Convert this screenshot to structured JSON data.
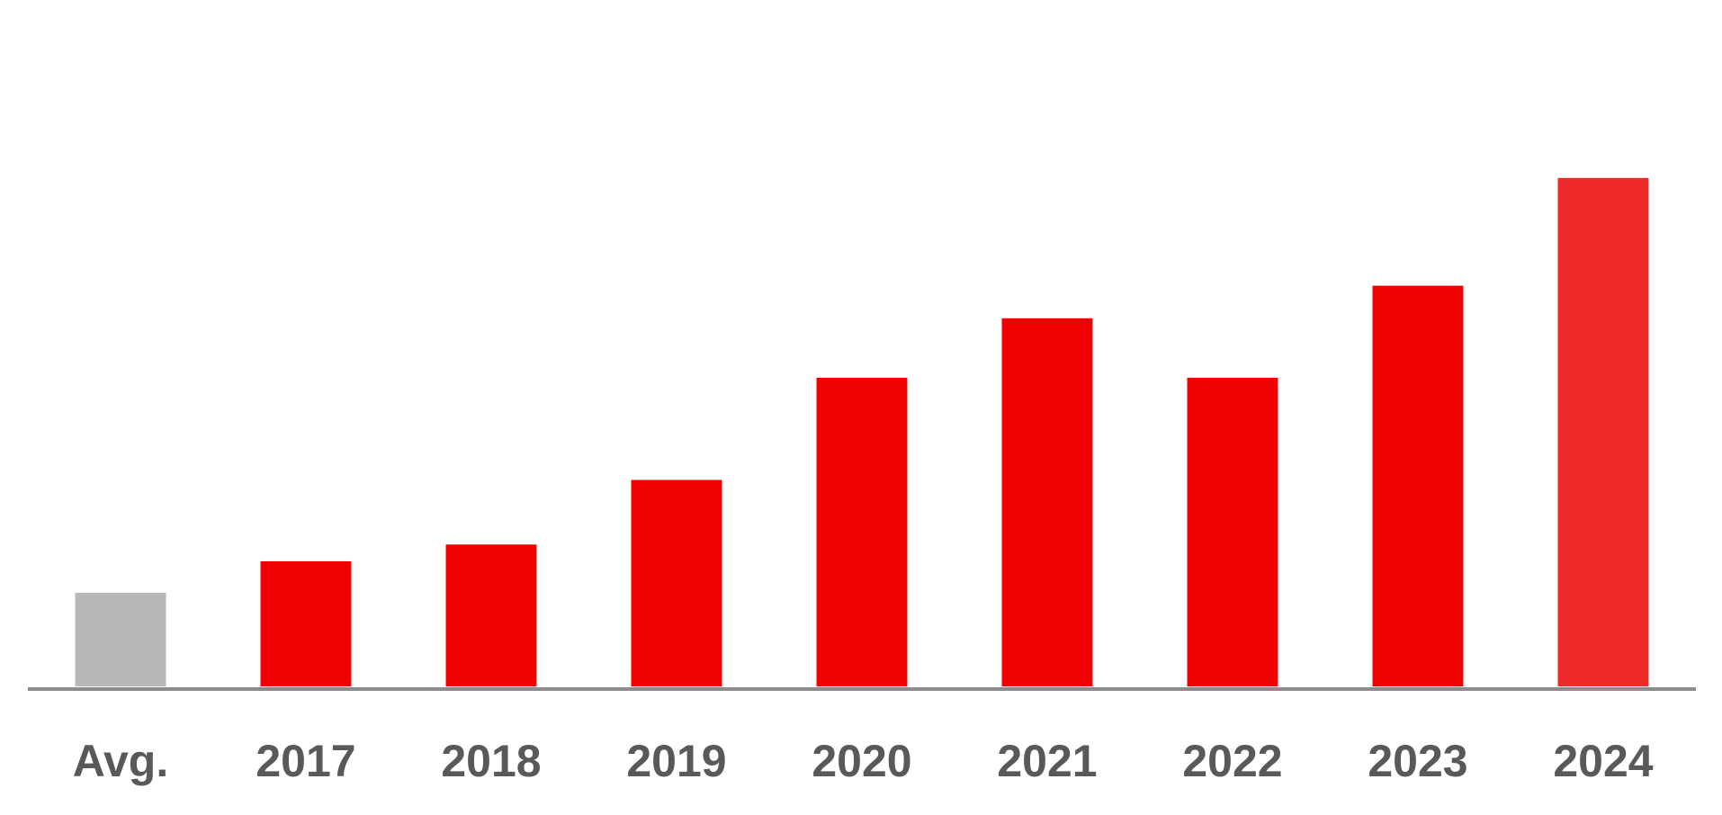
{
  "chart_data": {
    "type": "bar",
    "categories": [
      "Avg.",
      "2017",
      "2018",
      "2019",
      "2020",
      "2021",
      "2022",
      "2023",
      "2024"
    ],
    "values": [
      18.4,
      24.6,
      27.9,
      40.6,
      60.7,
      72.4,
      60.7,
      78.8,
      100
    ],
    "colors": [
      "#b7b7b7",
      "#f00000",
      "#f00000",
      "#f00000",
      "#f00000",
      "#f00000",
      "#f00000",
      "#f00000",
      "#ee2a2a"
    ],
    "ylim": [
      0,
      135
    ]
  }
}
